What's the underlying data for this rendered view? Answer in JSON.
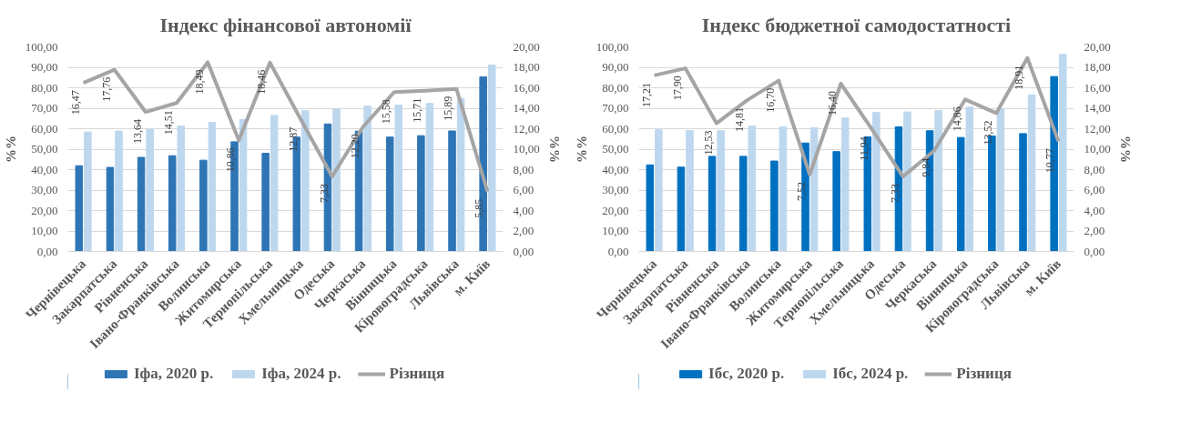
{
  "chart_data": [
    {
      "type": "bar",
      "title": "Індекс фінансової автономії",
      "ylabel": "%%",
      "y2label": "%%",
      "categories": [
        "Чернівецька",
        "Закарпатська",
        "Рівненська",
        "Івано-Франківська",
        "Волинська",
        "Житомирська",
        "Тернопільська",
        "Хмельницька",
        "Одеська",
        "Черкаська",
        "Вінницька",
        "Кіровоградська",
        "Львівська",
        "м. Київ"
      ],
      "series": [
        {
          "name": "Іфа, 2020 р.",
          "color": "#2e75b6",
          "values": [
            41.9,
            41.1,
            46.0,
            46.8,
            44.6,
            53.6,
            48.0,
            55.9,
            62.3,
            58.8,
            55.9,
            56.6,
            58.9,
            85.3
          ]
        },
        {
          "name": "Іфа, 2024 р.",
          "color": "#bdd7ee",
          "values": [
            58.4,
            58.9,
            59.6,
            61.3,
            63.1,
            64.5,
            66.5,
            68.8,
            69.6,
            71.0,
            71.5,
            72.3,
            74.8,
            91.1
          ]
        },
        {
          "name": "Різниця",
          "type": "line",
          "axis": "y2",
          "color": "#a5a5a5",
          "values": [
            16.47,
            17.76,
            13.64,
            14.51,
            18.49,
            10.86,
            18.46,
            12.87,
            7.33,
            12.2,
            15.58,
            15.71,
            15.89,
            5.85
          ],
          "value_labels": [
            "16,47",
            "17,76",
            "13,64",
            "14,51",
            "18,49",
            "10,86",
            "18,46",
            "12,87",
            "7,33",
            "12,20",
            "15,58",
            "15,71",
            "15,89",
            "5,85"
          ]
        }
      ],
      "ylim": [
        0,
        100
      ],
      "yticks": [
        {
          "value": 0,
          "label": "0,00"
        },
        {
          "value": 10,
          "label": "10,00"
        },
        {
          "value": 20,
          "label": "20,00"
        },
        {
          "value": 30,
          "label": "30,00"
        },
        {
          "value": 40,
          "label": "40,00"
        },
        {
          "value": 50,
          "label": "50,00"
        },
        {
          "value": 60,
          "label": "60,00"
        },
        {
          "value": 70,
          "label": "70,00"
        },
        {
          "value": 80,
          "label": "80,00"
        },
        {
          "value": 90,
          "label": "90,00"
        },
        {
          "value": 100,
          "label": "100,00"
        }
      ],
      "y2lim": [
        0,
        20
      ],
      "y2ticks": [
        {
          "value": 0,
          "label": "0,00"
        },
        {
          "value": 2,
          "label": "2,00"
        },
        {
          "value": 4,
          "label": "4,00"
        },
        {
          "value": 6,
          "label": "6,00"
        },
        {
          "value": 8,
          "label": "8,00"
        },
        {
          "value": 10,
          "label": "10,00"
        },
        {
          "value": 12,
          "label": "12,00"
        },
        {
          "value": 14,
          "label": "14,00"
        },
        {
          "value": 16,
          "label": "16,00"
        },
        {
          "value": 18,
          "label": "18,00"
        },
        {
          "value": 20,
          "label": "20,00"
        }
      ],
      "grid": "y",
      "legend": "bottom"
    },
    {
      "type": "bar",
      "title": "Індекс бюджетної самодостатності",
      "ylabel": "%%",
      "y2label": "%%",
      "categories": [
        "Чернівецька",
        "Закарпатська",
        "Рівненська",
        "Івано-Франківська",
        "Волинська",
        "Житомирська",
        "Тернопільська",
        "Хмельницька",
        "Одеська",
        "Черкаська",
        "Вінницька",
        "Кіровоградська",
        "Львівська",
        "м. Київ"
      ],
      "series": [
        {
          "name": "Ібс, 2020 р.",
          "color": "#0070c0",
          "values": [
            42.3,
            41.2,
            46.5,
            46.5,
            44.2,
            53.0,
            48.8,
            56.0,
            60.9,
            59.0,
            55.7,
            56.4,
            57.6,
            85.5
          ]
        },
        {
          "name": "Ібс, 2024 р.",
          "color": "#bdd7ee",
          "values": [
            59.5,
            59.1,
            59.0,
            61.3,
            60.9,
            60.5,
            65.2,
            67.9,
            68.2,
            68.8,
            70.6,
            69.9,
            76.5,
            96.3
          ]
        },
        {
          "name": "Різниця",
          "type": "line",
          "axis": "y2",
          "color": "#a5a5a5",
          "values": [
            17.21,
            17.9,
            12.53,
            14.81,
            16.7,
            7.52,
            16.4,
            11.94,
            7.33,
            9.84,
            14.86,
            13.52,
            18.91,
            10.77
          ],
          "value_labels": [
            "17,21",
            "17,90",
            "12,53",
            "14,81",
            "16,70",
            "7,52",
            "16,40",
            "11,94",
            "7,33",
            "9,84",
            "14,86",
            "13,52",
            "18,91",
            "10,77"
          ]
        }
      ],
      "ylim": [
        0,
        100
      ],
      "yticks": [
        {
          "value": 0,
          "label": "0,00"
        },
        {
          "value": 10,
          "label": "10,00"
        },
        {
          "value": 20,
          "label": "20,00"
        },
        {
          "value": 30,
          "label": "30,00"
        },
        {
          "value": 40,
          "label": "40,00"
        },
        {
          "value": 50,
          "label": "50,00"
        },
        {
          "value": 60,
          "label": "60,00"
        },
        {
          "value": 70,
          "label": "70,00"
        },
        {
          "value": 80,
          "label": "80,00"
        },
        {
          "value": 90,
          "label": "90,00"
        },
        {
          "value": 100,
          "label": "100,00"
        }
      ],
      "y2lim": [
        0,
        20
      ],
      "y2ticks": [
        {
          "value": 0,
          "label": "0,00"
        },
        {
          "value": 2,
          "label": "2,00"
        },
        {
          "value": 4,
          "label": "4,00"
        },
        {
          "value": 6,
          "label": "6,00"
        },
        {
          "value": 8,
          "label": "8,00"
        },
        {
          "value": 10,
          "label": "10,00"
        },
        {
          "value": 12,
          "label": "12,00"
        },
        {
          "value": 14,
          "label": "14,00"
        },
        {
          "value": 16,
          "label": "16,00"
        },
        {
          "value": 18,
          "label": "18,00"
        },
        {
          "value": 20,
          "label": "20,00"
        }
      ],
      "grid": "y",
      "legend": "bottom"
    }
  ]
}
